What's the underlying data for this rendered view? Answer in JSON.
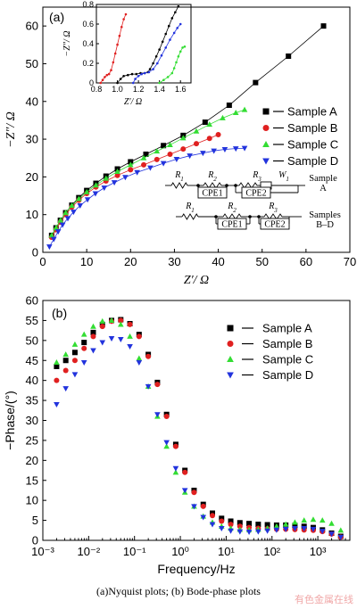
{
  "caption": "(a)Nyquist plots; (b) Bode-phase plots",
  "watermark": "有色金属在线",
  "chart_data": [
    {
      "type": "scatter",
      "panel_label": "(a)",
      "xlabel": "Z′/ Ω",
      "ylabel": "−Z″/ Ω",
      "xlim": [
        0,
        70
      ],
      "ylim": [
        0,
        65
      ],
      "xticks": [
        0,
        10,
        20,
        30,
        40,
        50,
        60,
        70
      ],
      "yticks": [
        0,
        10,
        20,
        30,
        40,
        50,
        60
      ],
      "legend": "right",
      "series": [
        {
          "name": "Sample A",
          "color": "#000000",
          "marker": "square",
          "x": [
            2.0,
            3.0,
            4.0,
            5.2,
            6.6,
            8.2,
            10.0,
            12.1,
            14.4,
            17.0,
            20.0,
            23.5,
            27.5,
            32.0,
            37.0,
            42.5,
            48.5,
            56.0,
            64.0
          ],
          "y": [
            4.5,
            6.5,
            8.5,
            10.5,
            12.5,
            14.5,
            16.4,
            18.3,
            20.2,
            22.1,
            24.0,
            26.0,
            28.3,
            31.0,
            34.5,
            39.0,
            45.0,
            52.0,
            60.0
          ]
        },
        {
          "name": "Sample B",
          "color": "#e02020",
          "marker": "circle",
          "x": [
            2.0,
            3.0,
            4.0,
            5.2,
            6.6,
            8.2,
            10.0,
            12.1,
            14.4,
            17.0,
            20.0,
            23.0,
            26.0,
            29.0,
            32.0,
            35.0,
            38.0,
            40.0
          ],
          "y": [
            4.0,
            6.0,
            8.0,
            10.0,
            12.0,
            13.8,
            15.6,
            17.3,
            18.9,
            20.4,
            21.9,
            23.2,
            24.6,
            26.0,
            27.4,
            28.8,
            30.2,
            31.2
          ]
        },
        {
          "name": "Sample C",
          "color": "#33dd33",
          "marker": "triangle-up",
          "x": [
            2.0,
            3.0,
            4.0,
            5.2,
            6.6,
            8.2,
            10.0,
            12.1,
            14.4,
            17.0,
            20.0,
            23.0,
            26.0,
            29.0,
            32.0,
            35.0,
            38.0,
            41.0,
            44.0,
            46.0
          ],
          "y": [
            4.5,
            6.5,
            8.5,
            10.5,
            12.4,
            14.2,
            16.0,
            17.8,
            19.6,
            21.4,
            23.2,
            25.0,
            26.8,
            28.5,
            30.3,
            32.1,
            33.9,
            35.6,
            37.0,
            37.8
          ]
        },
        {
          "name": "Sample D",
          "color": "#2233dd",
          "marker": "triangle-down",
          "x": [
            1.5,
            2.5,
            3.5,
            4.5,
            5.7,
            7.0,
            8.5,
            10.2,
            12.0,
            14.0,
            16.3,
            18.8,
            21.5,
            24.5,
            27.5,
            30.5,
            33.5,
            36.5,
            39.0,
            41.5,
            44.0,
            46.0
          ],
          "y": [
            1.5,
            3.5,
            5.5,
            7.3,
            9.0,
            10.7,
            12.4,
            14.0,
            15.6,
            17.1,
            18.5,
            19.9,
            21.2,
            22.4,
            23.6,
            24.7,
            25.6,
            26.3,
            26.9,
            27.3,
            27.5,
            27.6
          ]
        }
      ],
      "inset": {
        "xlabel": "Z′/ Ω",
        "ylabel": "−Z″/ Ω",
        "xlim": [
          0.8,
          1.7
        ],
        "ylim": [
          0,
          0.8
        ],
        "xticks": [
          0.8,
          1.0,
          1.2,
          1.4,
          1.6
        ],
        "yticks": [
          0,
          0.2,
          0.4,
          0.6,
          0.8
        ],
        "series": [
          {
            "name": "Sample A",
            "color": "#000000",
            "x": [
              1.0,
              1.03,
              1.06,
              1.1,
              1.14,
              1.18,
              1.22,
              1.26,
              1.29,
              1.31,
              1.34,
              1.37,
              1.4,
              1.43,
              1.46,
              1.49,
              1.52,
              1.55,
              1.58
            ],
            "y": [
              0.0,
              0.04,
              0.07,
              0.08,
              0.09,
              0.09,
              0.1,
              0.1,
              0.11,
              0.14,
              0.2,
              0.27,
              0.34,
              0.42,
              0.5,
              0.58,
              0.66,
              0.72,
              0.78
            ]
          },
          {
            "name": "Sample B",
            "color": "#e02020",
            "x": [
              0.84,
              0.86,
              0.88,
              0.9,
              0.92,
              0.94,
              0.96,
              0.98,
              1.0,
              1.02,
              1.04,
              1.06,
              1.08
            ],
            "y": [
              0.0,
              0.03,
              0.06,
              0.08,
              0.09,
              0.13,
              0.21,
              0.3,
              0.39,
              0.48,
              0.57,
              0.65,
              0.7
            ]
          },
          {
            "name": "Sample C",
            "color": "#33dd33",
            "x": [
              1.4,
              1.44,
              1.48,
              1.52,
              1.54,
              1.56,
              1.58,
              1.6,
              1.62,
              1.64
            ],
            "y": [
              0.0,
              0.03,
              0.06,
              0.1,
              0.15,
              0.21,
              0.27,
              0.32,
              0.36,
              0.37
            ]
          },
          {
            "name": "Sample D",
            "color": "#2233dd",
            "x": [
              1.15,
              1.17,
              1.2,
              1.23,
              1.26,
              1.3,
              1.34,
              1.38,
              1.42,
              1.46,
              1.5,
              1.54,
              1.57,
              1.6
            ],
            "y": [
              0.0,
              0.04,
              0.07,
              0.09,
              0.1,
              0.11,
              0.14,
              0.2,
              0.28,
              0.36,
              0.44,
              0.51,
              0.56,
              0.6
            ]
          }
        ]
      },
      "circuits": {
        "top": {
          "elements": [
            "R1",
            "R2",
            "R3",
            "W1"
          ],
          "cpes": [
            "CPE1",
            "CPE2"
          ],
          "label": "Sample A"
        },
        "bottom": {
          "elements": [
            "R1",
            "R2",
            "R3"
          ],
          "cpes": [
            "CPE1",
            "CPE2"
          ],
          "label": "Samples B–D"
        }
      }
    },
    {
      "type": "scatter",
      "panel_label": "(b)",
      "xlabel": "Frequency/Hz",
      "ylabel": "−Phase/(°)",
      "xscale": "log",
      "xlim": [
        0.001,
        5000
      ],
      "ylim": [
        0,
        60
      ],
      "xticks": [
        0.001,
        0.01,
        0.1,
        1,
        10,
        100,
        1000
      ],
      "xticklabels": [
        "10⁻³",
        "10⁻²",
        "10⁻¹",
        "10⁰",
        "10¹",
        "10²",
        "10³"
      ],
      "yticks": [
        0,
        5,
        10,
        15,
        20,
        25,
        30,
        35,
        40,
        45,
        50,
        55,
        60
      ],
      "legend": "upper-right",
      "series": [
        {
          "name": "Sample A",
          "color": "#000000",
          "marker": "square",
          "lf": [
            -2.7,
            -2.5,
            -2.3,
            -2.1,
            -1.9,
            -1.7,
            -1.5,
            -1.3,
            -1.1,
            -0.9,
            -0.7,
            -0.5,
            -0.3,
            -0.1,
            0.1,
            0.3,
            0.5,
            0.7,
            0.9,
            1.1,
            1.3,
            1.5,
            1.7,
            1.9,
            2.1,
            2.3,
            2.5,
            2.7,
            2.9,
            3.1,
            3.3,
            3.5
          ],
          "y": [
            43.5,
            45.0,
            47.0,
            49.5,
            52.0,
            54.0,
            55.0,
            55.2,
            54.2,
            51.5,
            46.5,
            39.5,
            31.5,
            24.0,
            17.5,
            12.5,
            9.0,
            6.8,
            5.5,
            4.8,
            4.4,
            4.2,
            4.0,
            3.9,
            3.8,
            3.8,
            3.7,
            3.5,
            3.2,
            2.6,
            1.8,
            1.0
          ]
        },
        {
          "name": "Sample B",
          "color": "#e02020",
          "marker": "circle",
          "lf": [
            -2.7,
            -2.5,
            -2.3,
            -2.1,
            -1.9,
            -1.7,
            -1.5,
            -1.3,
            -1.1,
            -0.9,
            -0.7,
            -0.5,
            -0.3,
            -0.1,
            0.1,
            0.3,
            0.5,
            0.7,
            0.9,
            1.1,
            1.3,
            1.5,
            1.7,
            1.9,
            2.1,
            2.3,
            2.5,
            2.7,
            2.9,
            3.1,
            3.3,
            3.5
          ],
          "y": [
            40.0,
            42.5,
            45.0,
            48.0,
            51.0,
            53.5,
            54.8,
            55.0,
            54.0,
            51.0,
            46.0,
            39.0,
            31.0,
            23.5,
            17.0,
            12.0,
            8.5,
            6.2,
            4.8,
            4.0,
            3.5,
            3.2,
            3.0,
            2.9,
            2.8,
            2.8,
            2.7,
            2.6,
            2.5,
            2.2,
            1.6,
            0.8
          ]
        },
        {
          "name": "Sample C",
          "color": "#33dd33",
          "marker": "triangle-up",
          "lf": [
            -2.7,
            -2.5,
            -2.3,
            -2.1,
            -1.9,
            -1.7,
            -1.5,
            -1.3,
            -1.1,
            -0.9,
            -0.7,
            -0.5,
            -0.3,
            -0.1,
            0.1,
            0.3,
            0.5,
            0.7,
            0.9,
            1.1,
            1.3,
            1.5,
            1.7,
            1.9,
            2.1,
            2.3,
            2.5,
            2.7,
            2.9,
            3.1,
            3.3,
            3.5
          ],
          "y": [
            44.5,
            46.5,
            49.0,
            51.5,
            53.5,
            54.8,
            55.0,
            54.0,
            51.0,
            45.5,
            38.5,
            31.0,
            23.5,
            17.0,
            12.0,
            8.5,
            6.0,
            4.5,
            3.5,
            3.0,
            2.7,
            2.6,
            2.7,
            3.0,
            3.5,
            4.0,
            4.5,
            5.0,
            5.2,
            5.0,
            4.2,
            2.5
          ]
        },
        {
          "name": "Sample D",
          "color": "#2233dd",
          "marker": "triangle-down",
          "lf": [
            -2.7,
            -2.5,
            -2.3,
            -2.1,
            -1.9,
            -1.7,
            -1.5,
            -1.3,
            -1.1,
            -0.9,
            -0.7,
            -0.5,
            -0.3,
            -0.1,
            0.1,
            0.3,
            0.5,
            0.7,
            0.9,
            1.1,
            1.3,
            1.5,
            1.7,
            1.9,
            2.1,
            2.3,
            2.5,
            2.7,
            2.9,
            3.1,
            3.3,
            3.5
          ],
          "y": [
            34.0,
            38.0,
            41.5,
            44.5,
            47.5,
            49.5,
            50.5,
            50.3,
            48.5,
            44.5,
            38.5,
            31.5,
            24.5,
            18.0,
            12.5,
            8.5,
            5.8,
            4.0,
            3.0,
            2.4,
            2.2,
            2.1,
            2.2,
            2.4,
            2.6,
            2.8,
            3.0,
            3.0,
            2.8,
            2.3,
            1.6,
            0.8
          ]
        }
      ]
    }
  ]
}
